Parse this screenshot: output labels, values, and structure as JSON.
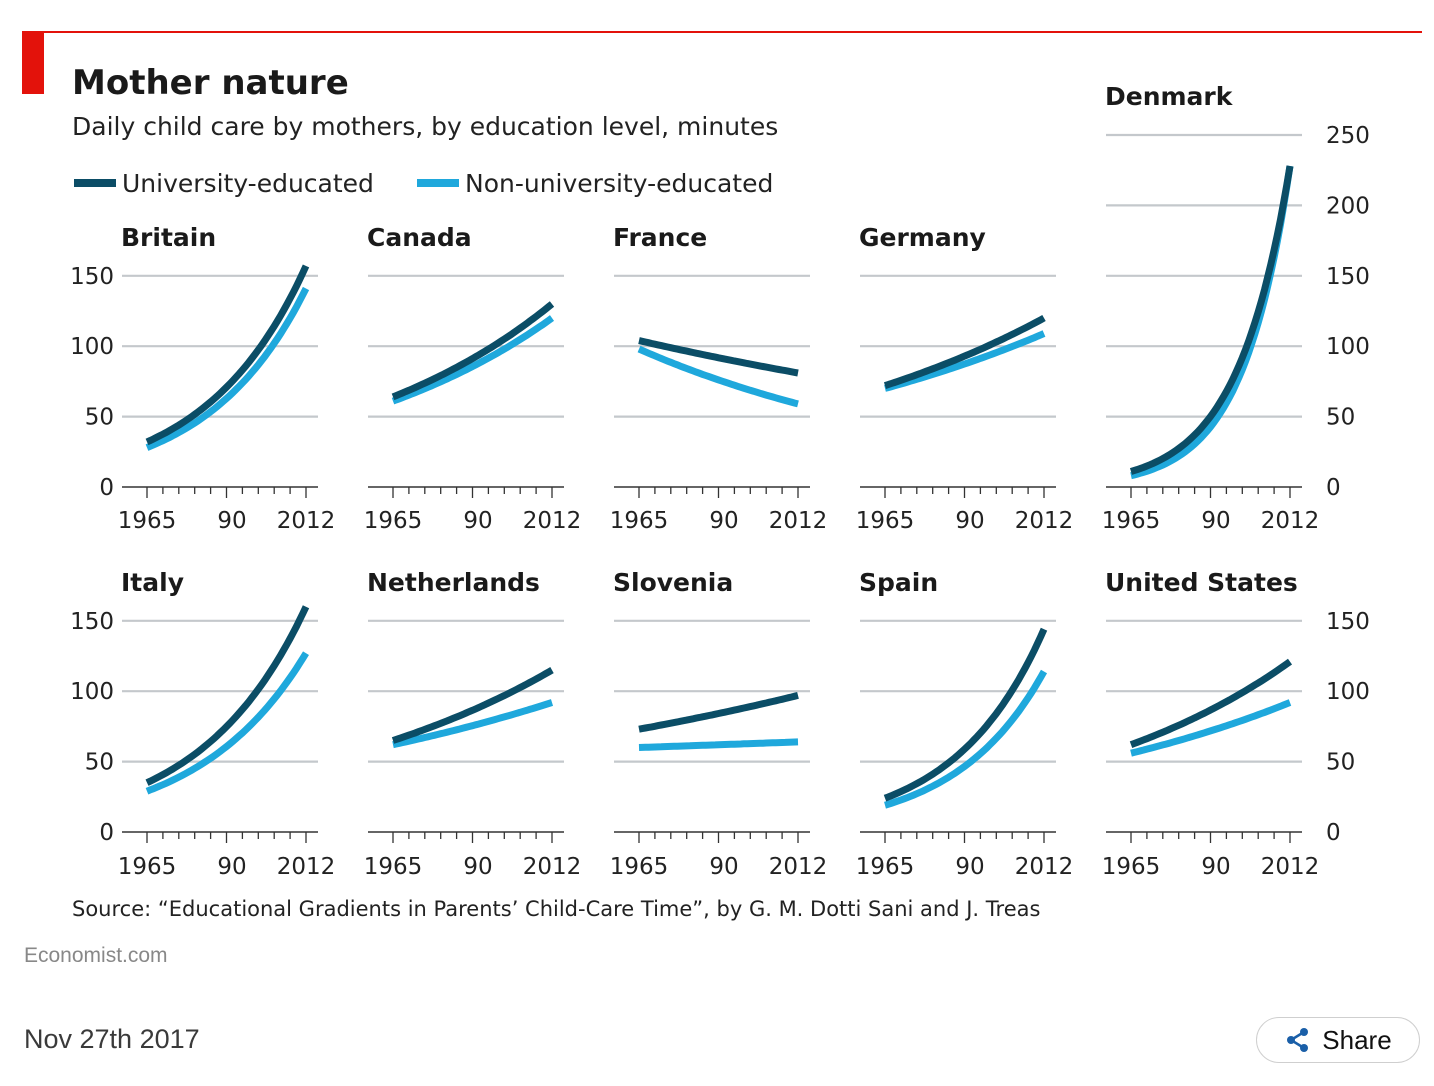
{
  "title": "Mother nature",
  "subtitle": "Daily child care by mothers, by education level, minutes",
  "source": "Source: “Educational Gradients in Parents’ Child-Care Time”, by G. M. Dotti Sani and J. Treas",
  "brand": "Economist.com",
  "date": "Nov 27th 2017",
  "share_label": "Share",
  "colors": {
    "accent_red": "#e3120b",
    "university": "#0b4d66",
    "non_university": "#1fa8dc",
    "grid": "#c4c8cc"
  },
  "legend": [
    {
      "label": "University-educated",
      "color": "#0b4d66"
    },
    {
      "label": "Non-university-educated",
      "color": "#1fa8dc"
    }
  ],
  "chart_data": [
    {
      "type": "line",
      "title": "Britain",
      "x_ticks": [
        "1965",
        "90",
        "2012"
      ],
      "y_ticks": [
        "0",
        "50",
        "100",
        "150"
      ],
      "ylim": [
        0,
        150
      ],
      "xlim": [
        1965,
        2012
      ],
      "curve": "exponential",
      "series": [
        {
          "name": "University-educated",
          "x": [
            1965,
            2012
          ],
          "y": [
            32,
            157
          ]
        },
        {
          "name": "Non-university-educated",
          "x": [
            1965,
            2012
          ],
          "y": [
            28,
            141
          ]
        }
      ]
    },
    {
      "type": "line",
      "title": "Canada",
      "x_ticks": [
        "1965",
        "90",
        "2012"
      ],
      "ylim": [
        0,
        150
      ],
      "xlim": [
        1965,
        2012
      ],
      "curve": "exponential",
      "series": [
        {
          "name": "University-educated",
          "x": [
            1965,
            2012
          ],
          "y": [
            64,
            130
          ]
        },
        {
          "name": "Non-university-educated",
          "x": [
            1965,
            2012
          ],
          "y": [
            61,
            120
          ]
        }
      ]
    },
    {
      "type": "line",
      "title": "France",
      "x_ticks": [
        "1965",
        "90",
        "2012"
      ],
      "ylim": [
        0,
        150
      ],
      "xlim": [
        1965,
        2012
      ],
      "curve": "exponential",
      "series": [
        {
          "name": "University-educated",
          "x": [
            1965,
            2012
          ],
          "y": [
            104,
            81
          ]
        },
        {
          "name": "Non-university-educated",
          "x": [
            1965,
            2012
          ],
          "y": [
            98,
            59
          ]
        }
      ]
    },
    {
      "type": "line",
      "title": "Germany",
      "x_ticks": [
        "1965",
        "90",
        "2012"
      ],
      "ylim": [
        0,
        150
      ],
      "xlim": [
        1965,
        2012
      ],
      "curve": "exponential",
      "series": [
        {
          "name": "University-educated",
          "x": [
            1965,
            2012
          ],
          "y": [
            72,
            120
          ]
        },
        {
          "name": "Non-university-educated",
          "x": [
            1965,
            2012
          ],
          "y": [
            70,
            109
          ]
        }
      ]
    },
    {
      "type": "line",
      "title": "Denmark",
      "x_ticks": [
        "1965",
        "90",
        "2012"
      ],
      "y_ticks": [
        "0",
        "50",
        "100",
        "150",
        "200",
        "250"
      ],
      "ylim": [
        0,
        250
      ],
      "xlim": [
        1965,
        2012
      ],
      "curve": "exponential",
      "series": [
        {
          "name": "University-educated",
          "x": [
            1965,
            2012
          ],
          "y": [
            11,
            228
          ]
        },
        {
          "name": "Non-university-educated",
          "x": [
            1965,
            2012
          ],
          "y": [
            8,
            228
          ]
        }
      ]
    },
    {
      "type": "line",
      "title": "Italy",
      "x_ticks": [
        "1965",
        "90",
        "2012"
      ],
      "y_ticks": [
        "0",
        "50",
        "100",
        "150"
      ],
      "ylim": [
        0,
        150
      ],
      "xlim": [
        1965,
        2012
      ],
      "curve": "exponential",
      "series": [
        {
          "name": "University-educated",
          "x": [
            1965,
            2012
          ],
          "y": [
            35,
            160
          ]
        },
        {
          "name": "Non-university-educated",
          "x": [
            1965,
            2012
          ],
          "y": [
            29,
            127
          ]
        }
      ]
    },
    {
      "type": "line",
      "title": "Netherlands",
      "x_ticks": [
        "1965",
        "90",
        "2012"
      ],
      "ylim": [
        0,
        150
      ],
      "xlim": [
        1965,
        2012
      ],
      "curve": "exponential",
      "series": [
        {
          "name": "University-educated",
          "x": [
            1965,
            2012
          ],
          "y": [
            65,
            115
          ]
        },
        {
          "name": "Non-university-educated",
          "x": [
            1965,
            2012
          ],
          "y": [
            62,
            92
          ]
        }
      ]
    },
    {
      "type": "line",
      "title": "Slovenia",
      "x_ticks": [
        "1965",
        "90",
        "2012"
      ],
      "ylim": [
        0,
        150
      ],
      "xlim": [
        1965,
        2012
      ],
      "curve": "exponential",
      "series": [
        {
          "name": "University-educated",
          "x": [
            1965,
            2012
          ],
          "y": [
            73,
            97
          ]
        },
        {
          "name": "Non-university-educated",
          "x": [
            1965,
            2012
          ],
          "y": [
            60,
            64
          ]
        }
      ]
    },
    {
      "type": "line",
      "title": "Spain",
      "x_ticks": [
        "1965",
        "90",
        "2012"
      ],
      "ylim": [
        0,
        150
      ],
      "xlim": [
        1965,
        2012
      ],
      "curve": "exponential",
      "series": [
        {
          "name": "University-educated",
          "x": [
            1965,
            2012
          ],
          "y": [
            24,
            144
          ]
        },
        {
          "name": "Non-university-educated",
          "x": [
            1965,
            2012
          ],
          "y": [
            19,
            114
          ]
        }
      ]
    },
    {
      "type": "line",
      "title": "United States",
      "x_ticks": [
        "1965",
        "90",
        "2012"
      ],
      "y_ticks": [
        "0",
        "50",
        "100",
        "150"
      ],
      "ylim": [
        0,
        150
      ],
      "xlim": [
        1965,
        2012
      ],
      "curve": "exponential",
      "series": [
        {
          "name": "University-educated",
          "x": [
            1965,
            2012
          ],
          "y": [
            62,
            121
          ]
        },
        {
          "name": "Non-university-educated",
          "x": [
            1965,
            2012
          ],
          "y": [
            56,
            92
          ]
        }
      ]
    }
  ]
}
